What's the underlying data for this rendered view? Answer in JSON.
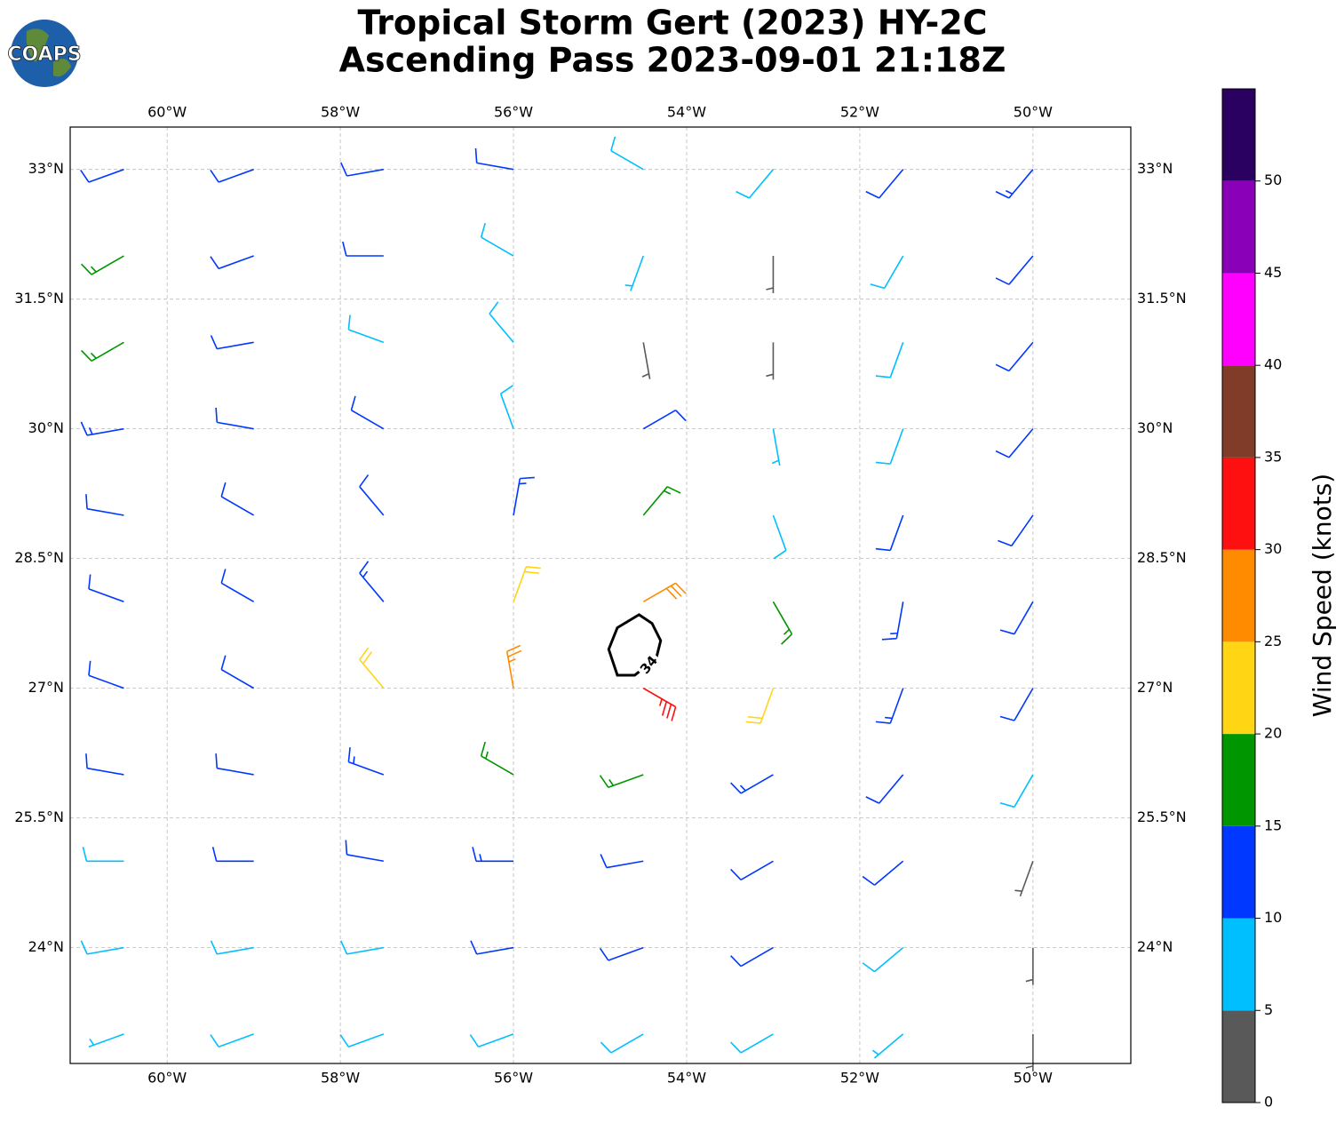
{
  "chart_data": {
    "type": "barbs",
    "logo": "COAPS",
    "title": "Tropical Storm Gert (2023) HY-2C",
    "subtitle": "Ascending Pass 2023-09-01 21:18Z",
    "xlim": [
      -61.12,
      -48.87
    ],
    "ylim": [
      22.66,
      33.49
    ],
    "xticks": [
      {
        "value": -60,
        "label": "60°W"
      },
      {
        "value": -58,
        "label": "58°W"
      },
      {
        "value": -56,
        "label": "56°W"
      },
      {
        "value": -54,
        "label": "54°W"
      },
      {
        "value": -52,
        "label": "52°W"
      },
      {
        "value": -50,
        "label": "50°W"
      }
    ],
    "yticks": [
      {
        "value": 24,
        "label": "24°N"
      },
      {
        "value": 25.5,
        "label": "25.5°N"
      },
      {
        "value": 27,
        "label": "27°N"
      },
      {
        "value": 28.5,
        "label": "28.5°N"
      },
      {
        "value": 30,
        "label": "30°N"
      },
      {
        "value": 31.5,
        "label": "31.5°N"
      },
      {
        "value": 33,
        "label": "33°N"
      }
    ],
    "grid": true,
    "wind": {
      "lon": [
        -60.5,
        -59,
        -57.5,
        -56,
        -54.5,
        -53,
        -51.5,
        -50
      ],
      "lat": [
        33,
        32,
        31,
        30,
        29,
        28,
        27,
        26,
        25,
        24,
        23
      ],
      "speed": [
        [
          12,
          12,
          12,
          12,
          8,
          8,
          12,
          13
        ],
        [
          17,
          12,
          11,
          9,
          7,
          4,
          8,
          12
        ],
        [
          16,
          12,
          9,
          8,
          3,
          3,
          8,
          12
        ],
        [
          13,
          12,
          11,
          8,
          11,
          7,
          8,
          12
        ],
        [
          12,
          12,
          11,
          13,
          17,
          8,
          11,
          12
        ],
        [
          12,
          12,
          13,
          22,
          28,
          17,
          13,
          12
        ],
        [
          12,
          12,
          22,
          27,
          33,
          21,
          14,
          11
        ],
        [
          11,
          12,
          13,
          16,
          17,
          14,
          12,
          9
        ],
        [
          9,
          11,
          11,
          13,
          12,
          11,
          11,
          3
        ],
        [
          8,
          8,
          9,
          11,
          11,
          11,
          8,
          3
        ],
        [
          7,
          8,
          8,
          8,
          9,
          8,
          6,
          3
        ]
      ],
      "direction": [
        [
          250,
          250,
          260,
          280,
          300,
          220,
          220,
          220
        ],
        [
          240,
          250,
          270,
          300,
          200,
          180,
          210,
          220
        ],
        [
          240,
          260,
          290,
          320,
          170,
          180,
          200,
          220
        ],
        [
          260,
          280,
          300,
          340,
          60,
          170,
          200,
          220
        ],
        [
          280,
          300,
          320,
          10,
          40,
          160,
          200,
          215
        ],
        [
          290,
          300,
          320,
          20,
          60,
          150,
          190,
          210
        ],
        [
          290,
          300,
          320,
          350,
          120,
          200,
          200,
          210
        ],
        [
          280,
          280,
          290,
          300,
          250,
          240,
          220,
          210
        ],
        [
          270,
          270,
          280,
          270,
          260,
          240,
          230,
          200
        ],
        [
          260,
          260,
          260,
          260,
          250,
          240,
          230,
          180
        ],
        [
          250,
          250,
          250,
          250,
          240,
          240,
          230,
          180
        ]
      ]
    },
    "contour": {
      "level": 34,
      "lon": [
        -54.55,
        -54.4,
        -54.3,
        -54.35,
        -54.6,
        -54.8,
        -54.9,
        -54.8
      ],
      "lat": [
        27.85,
        27.75,
        27.55,
        27.35,
        27.15,
        27.15,
        27.45,
        27.7
      ]
    },
    "colorbar": {
      "label": "Wind Speed (knots)",
      "ylim": [
        0,
        55
      ],
      "yticks": [
        0,
        5,
        10,
        15,
        20,
        25,
        30,
        35,
        40,
        45,
        50
      ],
      "bounds": [
        0,
        5,
        10,
        15,
        20,
        25,
        30,
        35,
        40,
        45,
        50,
        55
      ],
      "colors": [
        "#595959",
        "#00bfff",
        "#0038ff",
        "#009600",
        "#ffd514",
        "#ff8c00",
        "#ff1010",
        "#803c28",
        "#ff00ff",
        "#8a00b8",
        "#2a0060"
      ]
    }
  }
}
